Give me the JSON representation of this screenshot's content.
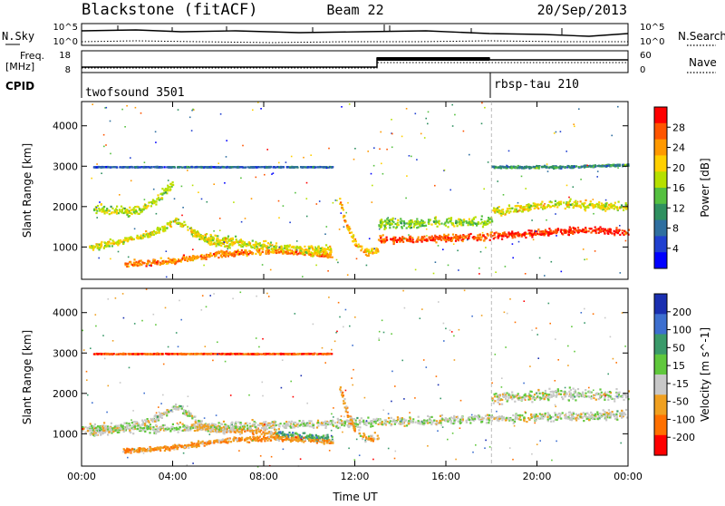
{
  "header": {
    "station": "Blackstone (fitACF)",
    "beam": "Beam 22",
    "date": "20/Sep/2013"
  },
  "top_panels": {
    "noise": {
      "left_label": "N.Sky",
      "right_label": "N.Search",
      "left_ticks": [
        "10^5",
        "10^0"
      ],
      "right_ticks": [
        "10^5",
        "10^0"
      ]
    },
    "freq": {
      "left_label_1": "Freq.",
      "left_label_2": "[MHz]",
      "right_label": "Nave",
      "left_ticks": [
        "18",
        "8"
      ],
      "right_ticks": [
        "60",
        "0"
      ]
    },
    "cpid": {
      "label": "CPID",
      "segments": [
        {
          "start_hour": 0,
          "name": "twofsound 3501"
        },
        {
          "start_hour": 18,
          "name": "rbsp-tau 210"
        }
      ]
    }
  },
  "chart_data": [
    {
      "type": "heatmap",
      "panel": "power",
      "xlabel": "",
      "ylabel": "Slant Range [km]",
      "xlim": [
        0,
        24
      ],
      "ylim": [
        200,
        4600
      ],
      "y_ticks": [
        1000,
        2000,
        3000,
        4000
      ],
      "x_ticks": [
        "00:00",
        "04:00",
        "08:00",
        "12:00",
        "16:00",
        "20:00",
        "00:00"
      ],
      "colorbar": {
        "label": "Power [dB]",
        "ticks": [
          "28",
          "24",
          "20",
          "16",
          "12",
          "8",
          "4"
        ],
        "colors": [
          "#ff0000",
          "#ff5500",
          "#ff9900",
          "#ffd000",
          "#b6e000",
          "#55c040",
          "#2f9060",
          "#2f6fa0",
          "#2040d0",
          "#0000ff"
        ]
      },
      "scatter_bands": [
        {
          "x": [
            0.3,
            1.5,
            2.8,
            3.6,
            4.1,
            4.8,
            5.5,
            6.5
          ],
          "y": [
            1000,
            1150,
            1300,
            1500,
            1700,
            1450,
            1150,
            1050
          ],
          "level": 0.6,
          "spread": 120
        },
        {
          "x": [
            0.5,
            1.5,
            2.5,
            3.3,
            4.0
          ],
          "y": [
            2000,
            1900,
            1900,
            2200,
            2600
          ],
          "level": 0.55,
          "spread": 160
        },
        {
          "x": [
            1.8,
            3.0,
            4.0,
            5.0,
            6.0,
            7.0,
            8.0,
            9.0,
            10.0,
            11.0
          ],
          "y": [
            600,
            640,
            680,
            760,
            850,
            880,
            910,
            900,
            870,
            820
          ],
          "level": 0.8,
          "spread": 110
        },
        {
          "x": [
            4.8,
            6.0,
            7.5,
            9.0,
            10.5,
            11.0
          ],
          "y": [
            1350,
            1200,
            1100,
            1000,
            950,
            950
          ],
          "level": 0.6,
          "spread": 150
        },
        {
          "x": [
            11.3,
            11.6,
            12.0,
            12.5,
            13.0
          ],
          "y": [
            2200,
            1600,
            1100,
            900,
            950
          ],
          "level": 0.7,
          "spread": 160
        },
        {
          "x": [
            13.0,
            14.5,
            16.0,
            17.5,
            18.0
          ],
          "y": [
            1200,
            1200,
            1250,
            1250,
            1300
          ],
          "level": 0.9,
          "spread": 130
        },
        {
          "x": [
            13.0,
            14.5,
            16.0,
            17.5,
            18.0
          ],
          "y": [
            1600,
            1600,
            1650,
            1650,
            1700
          ],
          "level": 0.5,
          "spread": 180
        },
        {
          "x": [
            18.0,
            19.5,
            21.0,
            22.5,
            24.0
          ],
          "y": [
            1300,
            1350,
            1400,
            1450,
            1400
          ],
          "level": 0.95,
          "spread": 120
        },
        {
          "x": [
            18.0,
            19.5,
            21.0,
            22.5,
            24.0
          ],
          "y": [
            1900,
            2000,
            2100,
            2050,
            2000
          ],
          "level": 0.6,
          "spread": 150
        },
        {
          "x": [
            0.5,
            4.0,
            8.0,
            11.0
          ],
          "y": [
            3000,
            3000,
            3000,
            3000
          ],
          "level": 0.2,
          "spread": 15
        },
        {
          "x": [
            18.0,
            21.0,
            24.0
          ],
          "y": [
            3000,
            3000,
            3050
          ],
          "level": 0.3,
          "spread": 40
        }
      ]
    },
    {
      "type": "heatmap",
      "panel": "velocity",
      "xlabel": "Time UT",
      "ylabel": "Slant Range [km]",
      "xlim": [
        0,
        24
      ],
      "ylim": [
        200,
        4600
      ],
      "y_ticks": [
        1000,
        2000,
        3000,
        4000
      ],
      "x_ticks": [
        "00:00",
        "04:00",
        "08:00",
        "12:00",
        "16:00",
        "20:00",
        "00:00"
      ],
      "colorbar": {
        "label": "Velocity [m s^-1]",
        "ticks": [
          "200",
          "100",
          "50",
          "15",
          "-15",
          "-50",
          "-100",
          "-200"
        ],
        "colors": [
          "#1a2fb0",
          "#3d6fcf",
          "#3a9a6a",
          "#60c83c",
          "#c8c8c8",
          "#f0a020",
          "#ff7000",
          "#ff0000"
        ]
      },
      "scatter_bands": [
        {
          "x": [
            0.3,
            1.5,
            2.8,
            3.6,
            4.1,
            4.8,
            5.5,
            6.5
          ],
          "y": [
            1000,
            1150,
            1300,
            1500,
            1700,
            1450,
            1150,
            1050
          ],
          "level": 0.45,
          "spread": 120
        },
        {
          "x": [
            4.8,
            6.0,
            7.5,
            8.5
          ],
          "y": [
            1200,
            1150,
            1100,
            1050
          ],
          "level": 0.3,
          "spread": 120
        },
        {
          "x": [
            8.5,
            9.5,
            10.5,
            11.0
          ],
          "y": [
            1000,
            950,
            900,
            880
          ],
          "level": 0.7,
          "spread": 140
        },
        {
          "x": [
            1.8,
            3.0,
            4.0,
            5.0,
            6.0,
            7.0,
            8.0,
            9.0,
            10.0,
            11.0
          ],
          "y": [
            600,
            640,
            680,
            760,
            850,
            880,
            910,
            900,
            870,
            820
          ],
          "level": 0.25,
          "spread": 90
        },
        {
          "x": [
            0.0,
            3.0,
            6.0,
            9.0,
            12.0,
            15.0,
            18.0,
            21.0,
            24.0
          ],
          "y": [
            1150,
            1150,
            1200,
            1250,
            1300,
            1350,
            1400,
            1450,
            1500
          ],
          "level": 0.45,
          "spread": 160
        },
        {
          "x": [
            11.3,
            11.6,
            12.0,
            12.5,
            13.0
          ],
          "y": [
            2200,
            1600,
            1100,
            900,
            950
          ],
          "level": 0.3,
          "spread": 160
        },
        {
          "x": [
            18.0,
            19.5,
            21.0,
            22.5,
            24.0
          ],
          "y": [
            1900,
            1950,
            2000,
            2000,
            2000
          ],
          "level": 0.45,
          "spread": 200
        },
        {
          "x": [
            0.5,
            4.0,
            8.0,
            11.0
          ],
          "y": [
            3000,
            3000,
            3000,
            3000
          ],
          "level": 0.1,
          "spread": 15
        }
      ]
    }
  ]
}
